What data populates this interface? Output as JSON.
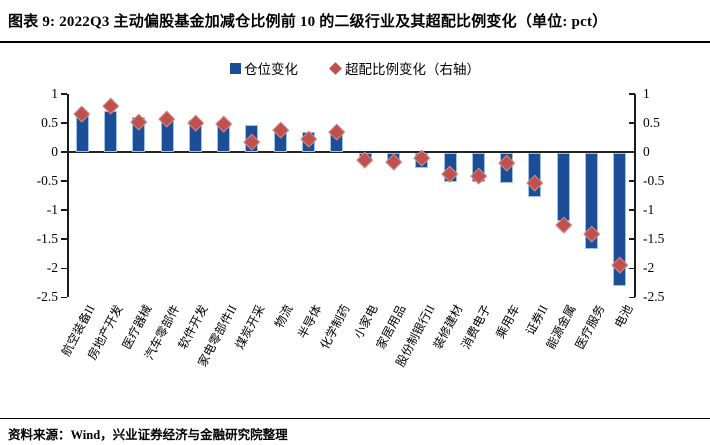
{
  "header": {
    "title": "图表 9: 2022Q3 主动偏股基金加减仓比例前 10 的二级行业及其超配比例变化（单位: pct）"
  },
  "legend": {
    "items": [
      {
        "label": "仓位变化",
        "marker": "square",
        "color": "#1B4E97"
      },
      {
        "label": "超配比例变化（右轴）",
        "marker": "diamond",
        "color": "#C0504D"
      }
    ]
  },
  "footer": {
    "source": "资料来源：Wind，兴业证券经济与金融研究院整理"
  },
  "chart_data": {
    "type": "bar",
    "subtype": "bar-with-diamond-markers-combo",
    "unit": "pct",
    "title": "2022Q3 主动偏股基金加减仓比例前 10 的二级行业及其超配比例变化",
    "categories": [
      "航空装备II",
      "房地产开发",
      "医疗器械",
      "汽车零部件",
      "软件开发",
      "家电零部件II",
      "煤炭开采",
      "物流",
      "半导体",
      "化学制药",
      "小家电",
      "家居用品",
      "股份制银行II",
      "装修建材",
      "消费电子",
      "乘用车",
      "证券II",
      "能源金属",
      "医疗服务",
      "电池"
    ],
    "series": [
      {
        "name": "仓位变化",
        "type": "bar",
        "axis": "left",
        "color": "#1B4E97",
        "values": [
          0.67,
          0.7,
          0.61,
          0.58,
          0.55,
          0.53,
          0.46,
          0.4,
          0.34,
          0.33,
          -0.12,
          -0.14,
          -0.27,
          -0.5,
          -0.5,
          -0.53,
          -0.77,
          -1.18,
          -1.66,
          -2.3
        ]
      },
      {
        "name": "超配比例变化（右轴）",
        "type": "scatter",
        "marker": "diamond",
        "axis": "right",
        "color": "#C0504D",
        "values": [
          0.66,
          0.8,
          0.53,
          0.57,
          0.5,
          0.48,
          0.18,
          0.38,
          0.23,
          0.35,
          -0.14,
          -0.16,
          -0.1,
          -0.38,
          -0.41,
          -0.19,
          -0.52,
          -1.25,
          -1.4,
          -1.94
        ]
      }
    ],
    "left_axis": {
      "min": -2.5,
      "max": 1,
      "step": 0.5,
      "tick_labels": [
        "1",
        "0.5",
        "0",
        "-0.5",
        "-1",
        "-1.5",
        "-2",
        "-2.5"
      ]
    },
    "right_axis": {
      "min": -2.5,
      "max": 1,
      "step": 0.5,
      "tick_labels": [
        "1",
        "0.5",
        "0",
        "-0.5",
        "-1",
        "-1.5",
        "-2",
        "-2.5"
      ]
    },
    "grid": false,
    "legend_position": "top-center"
  }
}
